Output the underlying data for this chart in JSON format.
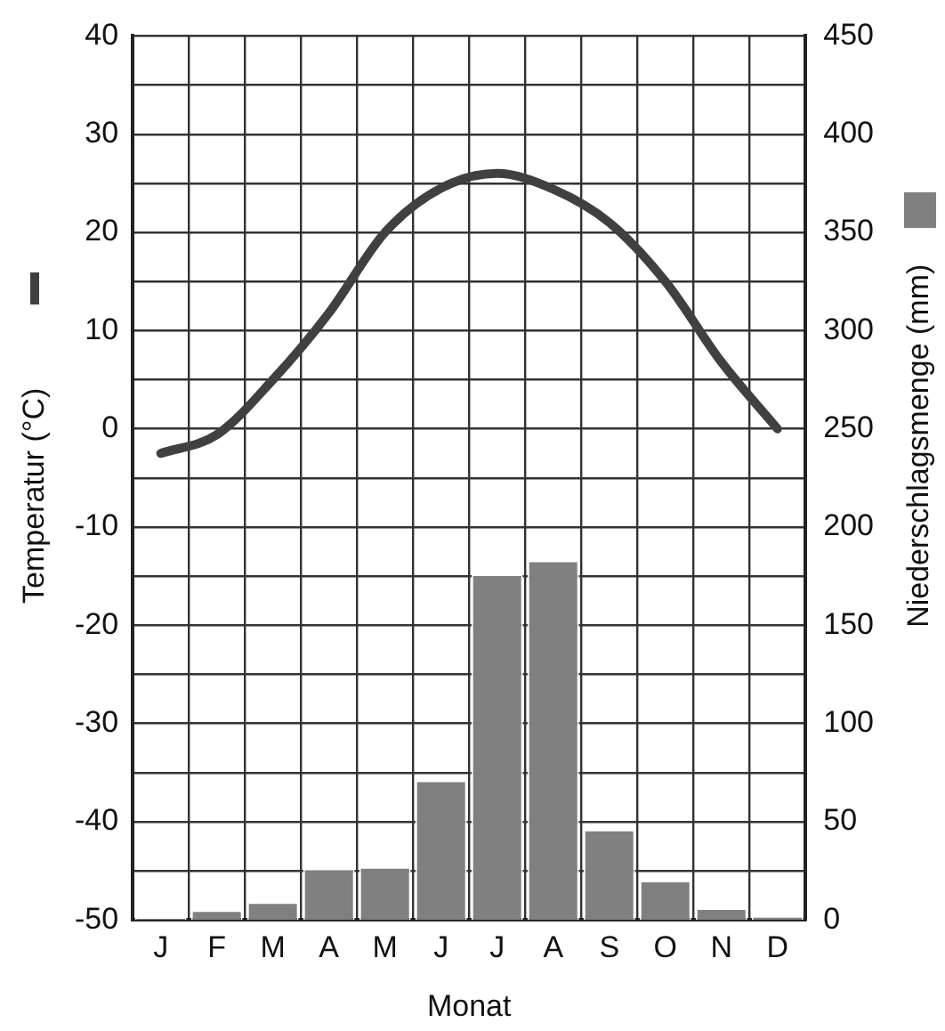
{
  "chart_data": {
    "type": "bar",
    "categories": [
      "J",
      "F",
      "M",
      "A",
      "M",
      "J",
      "J",
      "A",
      "S",
      "O",
      "N",
      "D"
    ],
    "xlabel": "Monat",
    "ylabel": "Temperatur (°C)",
    "y2label": "Niederschlagsmenge (mm)",
    "series": [
      {
        "type": "line",
        "color": "#404040",
        "values": [
          -2.5,
          -0.6,
          5,
          11.8,
          20,
          24.5,
          26,
          24.4,
          21,
          15,
          6.8,
          0
        ]
      },
      {
        "axis": "y2",
        "color": "#808080",
        "values": [
          1,
          5,
          9,
          26,
          27,
          71,
          176,
          183,
          46,
          20,
          6,
          2
        ]
      }
    ],
    "ylim": [
      -50,
      40
    ],
    "yticks": [
      -50,
      {
        "value": -45,
        "label": null
      },
      -40,
      {
        "value": -35,
        "label": null
      },
      -30,
      {
        "value": -25,
        "label": null
      },
      -20,
      {
        "value": -15,
        "label": null
      },
      -10,
      {
        "value": -5,
        "label": null
      },
      0,
      {
        "value": 5,
        "label": null
      },
      10,
      {
        "value": 15,
        "label": null
      },
      20,
      {
        "value": 25,
        "label": null
      },
      30,
      {
        "value": 35,
        "label": null
      },
      40
    ],
    "y2lim": [
      0,
      450
    ],
    "y2ticks": [
      0,
      50,
      100,
      150,
      200,
      250,
      300,
      350,
      400,
      450
    ],
    "grid": true,
    "marker": "none"
  }
}
